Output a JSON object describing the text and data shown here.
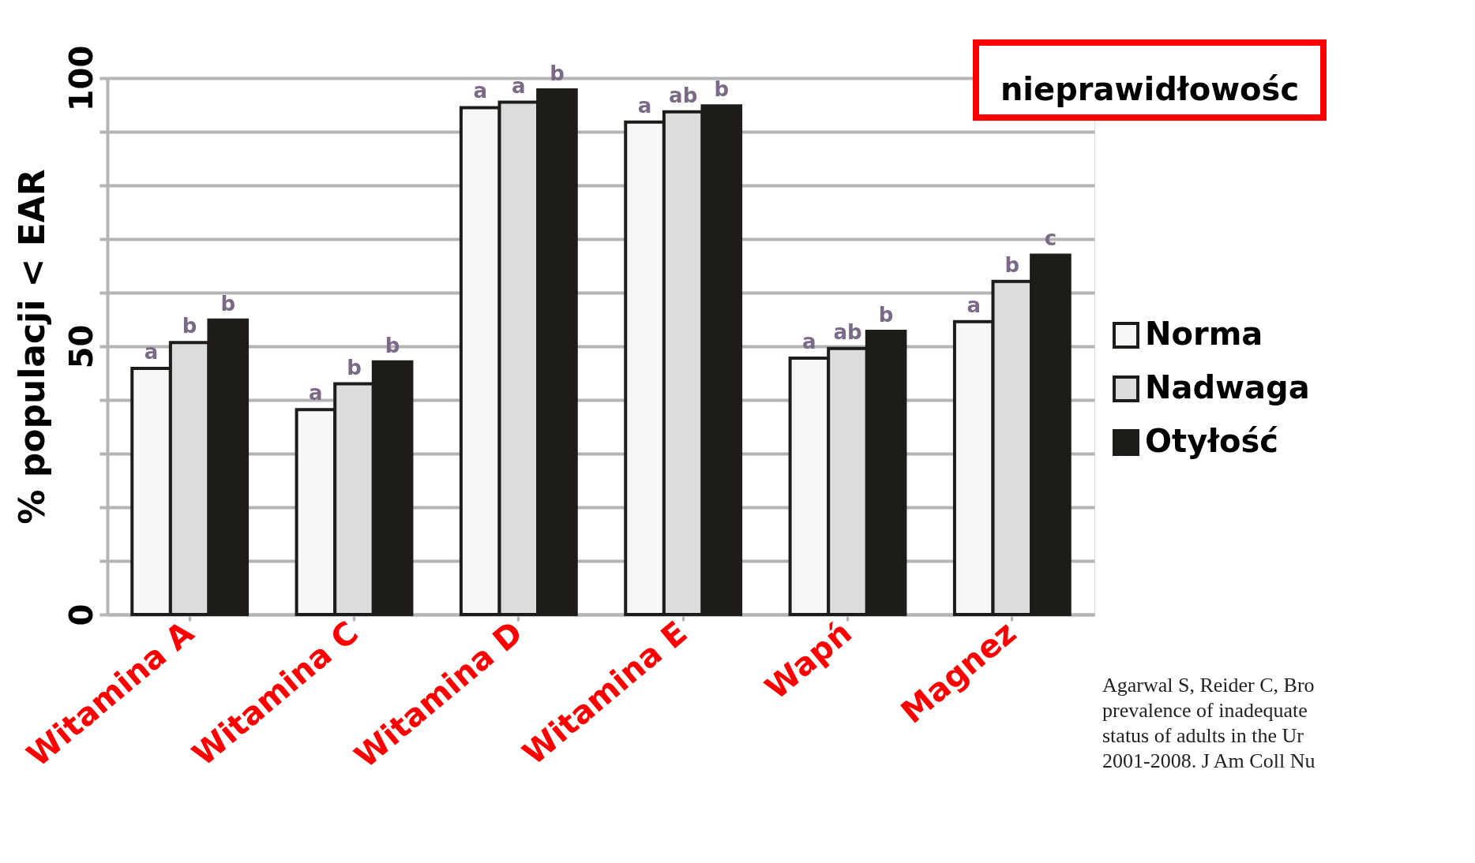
{
  "chart_data": {
    "type": "bar",
    "ylabel": "% populacji < EAR",
    "categories": [
      "Witamina A",
      "Witamina C",
      "Witamina D",
      "Witamina E",
      "Wapń",
      "Magnez"
    ],
    "series": [
      {
        "name": "Norma",
        "color": "#f7f7f7",
        "values": [
          45.9,
          38.2,
          94.5,
          91.8,
          47.8,
          54.6
        ],
        "value_labels": [
          "a",
          "a",
          "a",
          "a",
          "a",
          "a"
        ]
      },
      {
        "name": "Nadwaga",
        "color": "#dcdcdc",
        "values": [
          50.7,
          43.0,
          95.5,
          93.7,
          49.6,
          62.1
        ],
        "value_labels": [
          "b",
          "b",
          "a",
          "ab",
          "ab",
          "b"
        ]
      },
      {
        "name": "Otyłość",
        "color": "#1d1c18",
        "values": [
          54.9,
          47.1,
          97.8,
          94.8,
          52.8,
          67.0
        ],
        "value_labels": [
          "b",
          "b",
          "b",
          "b",
          "b",
          "c"
        ]
      }
    ],
    "ylim": [
      0,
      100
    ],
    "yticks": [
      0,
      {
        "value": 10,
        "label": null
      },
      {
        "value": 20,
        "label": null
      },
      {
        "value": 30,
        "label": null
      },
      {
        "value": 40,
        "label": null
      },
      50,
      {
        "value": 60,
        "label": null
      },
      {
        "value": 70,
        "label": null
      },
      {
        "value": 80,
        "label": null
      },
      {
        "value": 90,
        "label": null
      },
      100
    ],
    "grid": "y",
    "legend": "right",
    "annotations": [
      "nieprawidłowośc",
      "Agarwal S, Reider C, Bro",
      "prevalence of inadequate",
      "status of adults in the Ur",
      "2001-2008. J Am Coll Nu"
    ]
  }
}
